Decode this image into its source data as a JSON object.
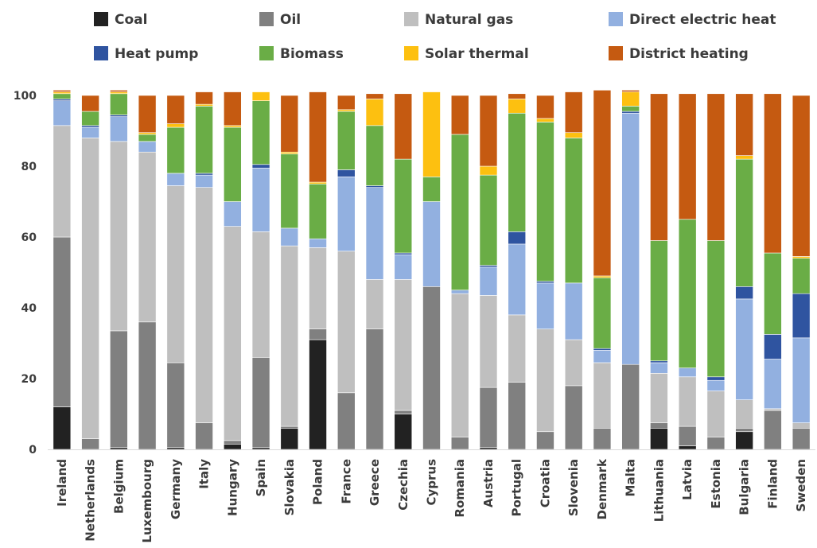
{
  "chart_data": {
    "type": "bar",
    "stacked": true,
    "title": "",
    "xlabel": "",
    "ylabel": "",
    "ylim": [
      0,
      100
    ],
    "yticks": [
      0,
      20,
      40,
      60,
      80,
      100
    ],
    "grid": false,
    "legend_position": "top",
    "categories": [
      "Ireland",
      "Netherlands",
      "Belgium",
      "Luxembourg",
      "Germany",
      "Italy",
      "Hungary",
      "Spain",
      "Slovakia",
      "Poland",
      "France",
      "Greece",
      "Czechia",
      "Cyprus",
      "Romania",
      "Austria",
      "Portugal",
      "Croatia",
      "Slovenia",
      "Denmark",
      "Malta",
      "Lithuania",
      "Latvia",
      "Estonia",
      "Bulgaria",
      "Finland",
      "Sweden"
    ],
    "series": [
      {
        "name": "Coal",
        "color": "#222222",
        "values": [
          12,
          0,
          0.5,
          0,
          0.5,
          0,
          1.5,
          0.5,
          6,
          31,
          0,
          0,
          10,
          0,
          0,
          0.5,
          0,
          0,
          0,
          0,
          0,
          6,
          1,
          0,
          5,
          0,
          0
        ]
      },
      {
        "name": "Oil",
        "color": "#808080",
        "values": [
          48,
          3,
          33,
          36,
          24,
          7.5,
          1,
          25.5,
          0.5,
          3,
          16,
          34,
          1,
          46,
          3.5,
          17,
          19,
          5,
          18,
          6,
          24,
          1.5,
          5.5,
          3.5,
          1,
          11,
          6
        ]
      },
      {
        "name": "Natural gas",
        "color": "#bfbfbf",
        "values": [
          31.5,
          85,
          53.5,
          48,
          50,
          66.5,
          60.5,
          35.5,
          51,
          23,
          40,
          14,
          37,
          0,
          40.5,
          26,
          19,
          29,
          13,
          18.5,
          0,
          14,
          14,
          13,
          8,
          0.5,
          1.5
        ]
      },
      {
        "name": "Direct electric heat",
        "color": "#92b0e0",
        "values": [
          7,
          3,
          7,
          3,
          3.5,
          3.5,
          7,
          18,
          5,
          2.5,
          21,
          26,
          7,
          24,
          1,
          8,
          20,
          13,
          16,
          3.5,
          71,
          3,
          2.5,
          3,
          28.5,
          14,
          24
        ]
      },
      {
        "name": "Heat pump",
        "color": "#2f54a0",
        "values": [
          0.5,
          0.5,
          0.5,
          0,
          0,
          0.5,
          0,
          1,
          0,
          0,
          2,
          0.5,
          0.5,
          0,
          0,
          0.5,
          3.5,
          0.5,
          0,
          0.5,
          0.5,
          0.5,
          0,
          1,
          3.5,
          7,
          12.5
        ]
      },
      {
        "name": "Biomass",
        "color": "#6aad46",
        "values": [
          1.5,
          4,
          6,
          2,
          13,
          19,
          21,
          18,
          21,
          15.5,
          16.5,
          17,
          26.5,
          7,
          44,
          25.5,
          33.5,
          45,
          41,
          20,
          1.5,
          34,
          42,
          38.5,
          36,
          23,
          10
        ]
      },
      {
        "name": "Solar thermal",
        "color": "#fdc010",
        "values": [
          0.5,
          0,
          0.5,
          0.5,
          1,
          0.5,
          0.5,
          2.5,
          0.5,
          0.5,
          0.5,
          7.5,
          0,
          24,
          0,
          2.5,
          4,
          1,
          1.5,
          0.5,
          4,
          0,
          0,
          0,
          1,
          0,
          0.5
        ]
      },
      {
        "name": "District heating",
        "color": "#c55a11",
        "values": [
          0.5,
          4.5,
          0.5,
          10.5,
          8,
          3.5,
          9.5,
          0,
          16,
          25.5,
          4,
          1.5,
          18.5,
          0,
          11,
          20,
          1.5,
          6.5,
          11.5,
          52.5,
          0.5,
          41.5,
          35.5,
          41.5,
          17.5,
          45,
          45.5
        ]
      }
    ]
  }
}
